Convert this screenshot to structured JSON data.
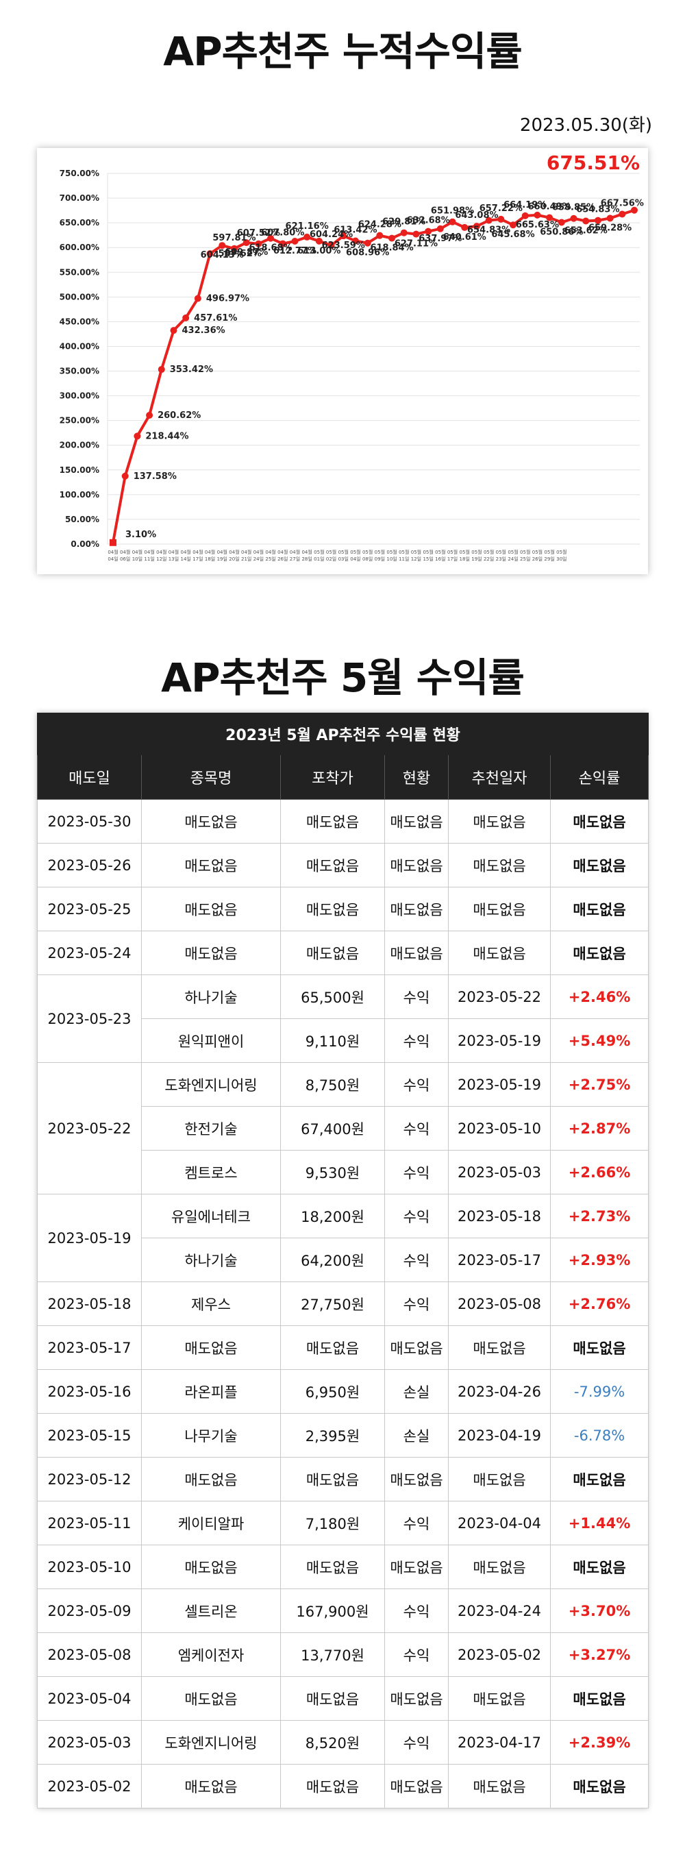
{
  "title": "AP추천주 누적수익률",
  "date": "2023.05.30(화)",
  "chart_data": {
    "type": "line",
    "highlight_label": "675.51%",
    "colors": {
      "line": "#e8201e",
      "highlight": "#e8201e"
    },
    "grid": true,
    "ylim": [
      0,
      750
    ],
    "y_ticks": [
      "0.00%",
      "50.00%",
      "100.00%",
      "150.00%",
      "200.00%",
      "250.00%",
      "300.00%",
      "350.00%",
      "400.00%",
      "450.00%",
      "500.00%",
      "550.00%",
      "600.00%",
      "650.00%",
      "700.00%",
      "750.00%"
    ],
    "x": [
      "04월 04일",
      "04월 06일",
      "04월 10일",
      "04월 11일",
      "04월 12일",
      "04월 13일",
      "04월 14일",
      "04월 17일",
      "04월 18일",
      "04월 19일",
      "04월 20일",
      "04월 21일",
      "04월 24일",
      "04월 25일",
      "04월 26일",
      "04월 27일",
      "04월 28일",
      "05월 01일",
      "05월 02일",
      "05월 03일",
      "05월 04일",
      "05월 08일",
      "05월 09일",
      "05월 10일",
      "05월 11일",
      "05월 12일",
      "05월 15일",
      "05월 16일",
      "05월 17일",
      "05월 18일",
      "05월 19일",
      "05월 22일",
      "05월 23일",
      "05월 24일",
      "05월 25일",
      "05월 26일",
      "05월 29일",
      "05월 30일"
    ],
    "values": [
      3.1,
      137.58,
      218.44,
      260.62,
      353.42,
      432.36,
      457.61,
      496.97,
      587.62,
      604.13,
      597.81,
      609.87,
      607.52,
      618.68,
      607.8,
      612.77,
      621.16,
      613.0,
      604.24,
      623.59,
      613.42,
      608.96,
      624.28,
      618.84,
      629.81,
      627.11,
      632.68,
      637.97,
      651.98,
      640.61,
      643.08,
      654.83,
      657.22,
      645.68,
      664.19,
      665.63,
      660.49,
      650.86
    ],
    "labels": [
      "3.10%",
      "137.58%",
      "218.44%",
      "260.62%",
      "353.42%",
      "432.36%",
      "457.61%",
      "496.97%",
      "587.62%",
      "604.13%",
      "597.81%",
      "609.87%",
      "607.52%",
      "618.68%",
      "607.80%",
      "612.77%",
      "621.16%",
      "613.00%",
      "604.24%",
      "623.59%",
      "613.42%",
      "608.96%",
      "624.28%",
      "618.84%",
      "629.81%",
      "627.11%",
      "632.68%",
      "637.97%",
      "651.98%",
      "640.61%",
      "643.08%",
      "654.83%",
      "657.22%",
      "645.68%",
      "664.19%",
      "665.63%",
      "660.49%",
      "650.86%"
    ],
    "extra_values": [
      658.85,
      653.62,
      654.83,
      659.28,
      667.56,
      675.51
    ],
    "extra_labels": [
      "658.85%",
      "653.62%",
      "654.83%",
      "659.28%",
      "667.56%",
      ""
    ]
  },
  "table_title": "AP추천주 5월 수익률",
  "table": {
    "caption": "2023년 5월 AP추천주 수익률 현황",
    "headers": [
      "매도일",
      "종목명",
      "포착가",
      "현황",
      "추천일자",
      "손익률"
    ],
    "rows": [
      {
        "date": "2023-05-30",
        "name": "매도없음",
        "price": "매도없음",
        "status": "매도없음",
        "rec": "매도없음",
        "pl": "매도없음",
        "type": "none"
      },
      {
        "date": "2023-05-26",
        "name": "매도없음",
        "price": "매도없음",
        "status": "매도없음",
        "rec": "매도없음",
        "pl": "매도없음",
        "type": "none"
      },
      {
        "date": "2023-05-25",
        "name": "매도없음",
        "price": "매도없음",
        "status": "매도없음",
        "rec": "매도없음",
        "pl": "매도없음",
        "type": "none"
      },
      {
        "date": "2023-05-24",
        "name": "매도없음",
        "price": "매도없음",
        "status": "매도없음",
        "rec": "매도없음",
        "pl": "매도없음",
        "type": "none"
      },
      {
        "date": "2023-05-23",
        "span": 2,
        "name": "하나기술",
        "price": "65,500원",
        "status": "수익",
        "rec": "2023-05-22",
        "pl": "+2.46%",
        "type": "pos"
      },
      {
        "date": "",
        "name": "원익피앤이",
        "price": "9,110원",
        "status": "수익",
        "rec": "2023-05-19",
        "pl": "+5.49%",
        "type": "pos"
      },
      {
        "date": "2023-05-22",
        "span": 3,
        "name": "도화엔지니어링",
        "price": "8,750원",
        "status": "수익",
        "rec": "2023-05-19",
        "pl": "+2.75%",
        "type": "pos"
      },
      {
        "date": "",
        "name": "한전기술",
        "price": "67,400원",
        "status": "수익",
        "rec": "2023-05-10",
        "pl": "+2.87%",
        "type": "pos"
      },
      {
        "date": "",
        "name": "켐트로스",
        "price": "9,530원",
        "status": "수익",
        "rec": "2023-05-03",
        "pl": "+2.66%",
        "type": "pos"
      },
      {
        "date": "2023-05-19",
        "span": 2,
        "name": "유일에너테크",
        "price": "18,200원",
        "status": "수익",
        "rec": "2023-05-18",
        "pl": "+2.73%",
        "type": "pos"
      },
      {
        "date": "",
        "name": "하나기술",
        "price": "64,200원",
        "status": "수익",
        "rec": "2023-05-17",
        "pl": "+2.93%",
        "type": "pos"
      },
      {
        "date": "2023-05-18",
        "name": "제우스",
        "price": "27,750원",
        "status": "수익",
        "rec": "2023-05-08",
        "pl": "+2.76%",
        "type": "pos"
      },
      {
        "date": "2023-05-17",
        "name": "매도없음",
        "price": "매도없음",
        "status": "매도없음",
        "rec": "매도없음",
        "pl": "매도없음",
        "type": "none"
      },
      {
        "date": "2023-05-16",
        "name": "라온피플",
        "price": "6,950원",
        "status": "손실",
        "rec": "2023-04-26",
        "pl": "-7.99%",
        "type": "neg"
      },
      {
        "date": "2023-05-15",
        "name": "나무기술",
        "price": "2,395원",
        "status": "손실",
        "rec": "2023-04-19",
        "pl": "-6.78%",
        "type": "neg"
      },
      {
        "date": "2023-05-12",
        "name": "매도없음",
        "price": "매도없음",
        "status": "매도없음",
        "rec": "매도없음",
        "pl": "매도없음",
        "type": "none"
      },
      {
        "date": "2023-05-11",
        "name": "케이티알파",
        "price": "7,180원",
        "status": "수익",
        "rec": "2023-04-04",
        "pl": "+1.44%",
        "type": "pos"
      },
      {
        "date": "2023-05-10",
        "name": "매도없음",
        "price": "매도없음",
        "status": "매도없음",
        "rec": "매도없음",
        "pl": "매도없음",
        "type": "none"
      },
      {
        "date": "2023-05-09",
        "name": "셀트리온",
        "price": "167,900원",
        "status": "수익",
        "rec": "2023-04-24",
        "pl": "+3.70%",
        "type": "pos"
      },
      {
        "date": "2023-05-08",
        "name": "엠케이전자",
        "price": "13,770원",
        "status": "수익",
        "rec": "2023-05-02",
        "pl": "+3.27%",
        "type": "pos"
      },
      {
        "date": "2023-05-04",
        "name": "매도없음",
        "price": "매도없음",
        "status": "매도없음",
        "rec": "매도없음",
        "pl": "매도없음",
        "type": "none"
      },
      {
        "date": "2023-05-03",
        "name": "도화엔지니어링",
        "price": "8,520원",
        "status": "수익",
        "rec": "2023-04-17",
        "pl": "+2.39%",
        "type": "pos"
      },
      {
        "date": "2023-05-02",
        "name": "매도없음",
        "price": "매도없음",
        "status": "매도없음",
        "rec": "매도없음",
        "pl": "매도없음",
        "type": "none"
      }
    ]
  }
}
